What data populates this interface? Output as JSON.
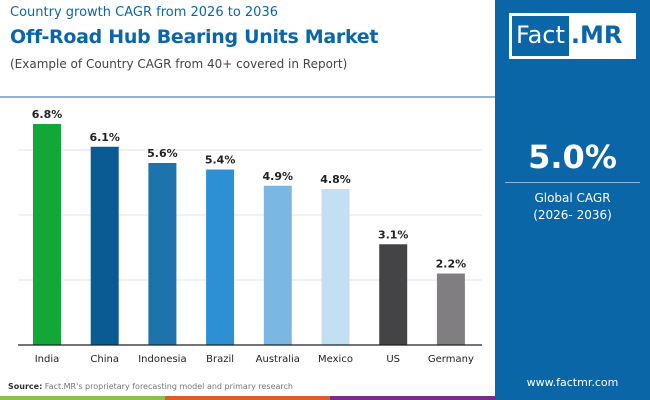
{
  "header": {
    "subtitle": "Country growth CAGR from 2026 to 2036",
    "title": "Off-Road Hub Bearing Units Market",
    "note": "(Example of Country CAGR from 40+ covered in Report)"
  },
  "panel": {
    "logo_left": "Fact",
    "logo_right": ".MR",
    "value": "5.0%",
    "label1": "Global CAGR",
    "label2": "(2026- 2036)",
    "website": "www.factmr.com"
  },
  "source": {
    "label": "Source:",
    "text": " Fact.MR's proprietary forecasting model and primary research"
  },
  "colors": {
    "brand": "#0b66a8",
    "stripes": [
      "#8cc04a",
      "#e05a2a",
      "#7b2c8a"
    ]
  },
  "chart_data": {
    "type": "bar",
    "categories": [
      "India",
      "China",
      "Indonesia",
      "Brazil",
      "Australia",
      "Mexico",
      "US",
      "Germany"
    ],
    "values": [
      6.8,
      6.1,
      5.6,
      5.4,
      4.9,
      4.8,
      3.1,
      2.2
    ],
    "labels": [
      "6.8%",
      "6.1%",
      "5.6%",
      "5.4%",
      "4.9%",
      "4.8%",
      "3.1%",
      "2.2%"
    ],
    "colors": [
      "#12a838",
      "#0a5a94",
      "#1f73ad",
      "#2e90d4",
      "#7ab8e3",
      "#c2e0f2",
      "#444346",
      "#807e80"
    ],
    "ylim": [
      0,
      8
    ],
    "grid": true,
    "unit": "%"
  }
}
